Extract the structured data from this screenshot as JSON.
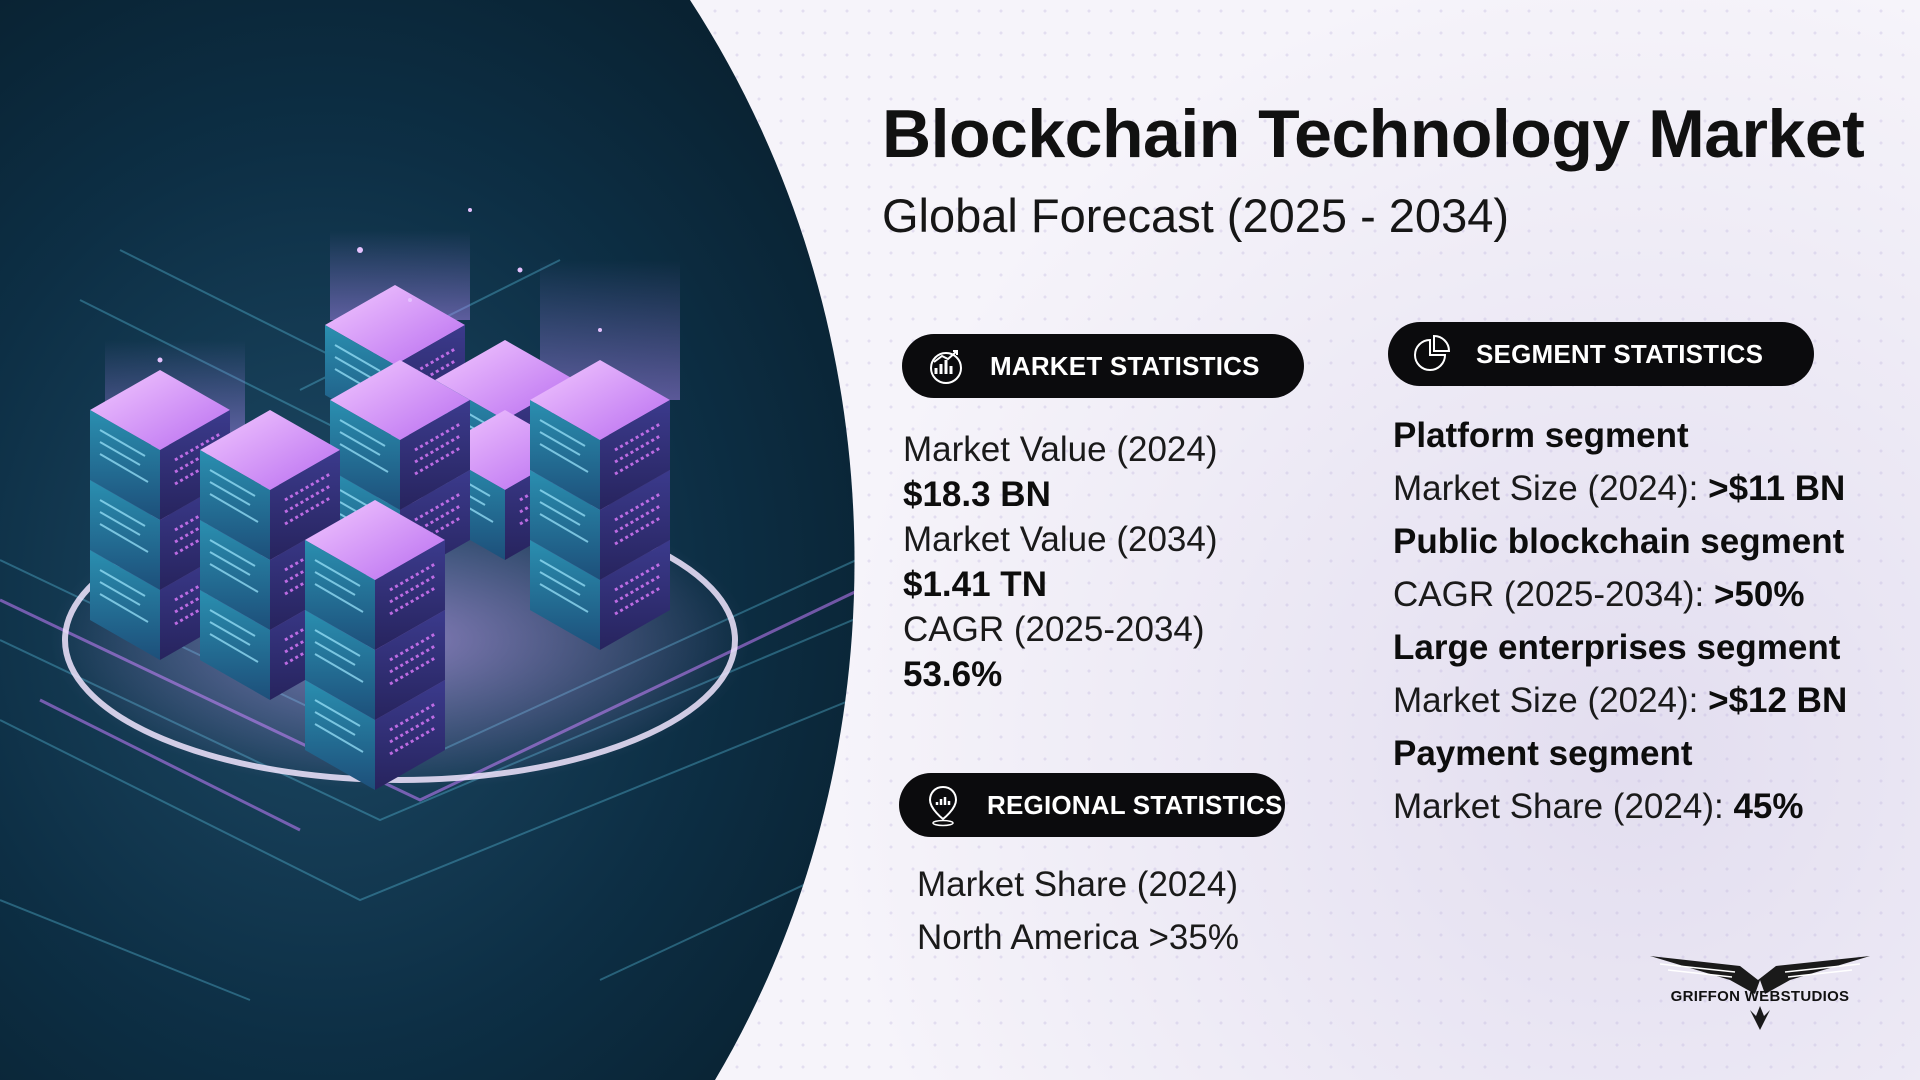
{
  "header": {
    "title": "Blockchain Technology Market",
    "subtitle": "Global Forecast (2025 - 2034)"
  },
  "market_statistics": {
    "heading": "MARKET STATISTICS",
    "icon": "chart-globe-icon",
    "lines": [
      {
        "text": "Market Value (2024)",
        "style": "regular"
      },
      {
        "text": "$18.3 BN",
        "style": "bold"
      },
      {
        "text": "Market Value (2034)",
        "style": "regular"
      },
      {
        "text": "$1.41 TN",
        "style": "bold"
      },
      {
        "text": "CAGR (2025-2034)",
        "style": "regular"
      },
      {
        "text": "53.6%",
        "style": "bold"
      }
    ]
  },
  "regional_statistics": {
    "heading": "REGIONAL STATISTICS",
    "icon": "location-pin-icon",
    "lines": [
      {
        "text": "Market Share (2024)"
      },
      {
        "text": "North America >35%"
      }
    ]
  },
  "segment_statistics": {
    "heading": "SEGMENT STATISTICS",
    "icon": "pie-chart-icon",
    "segments": [
      {
        "title": "Platform segment",
        "metric": "Market Size (2024): ",
        "value": ">$11 BN"
      },
      {
        "title": "Public blockchain segment",
        "metric": "CAGR (2025-2034): ",
        "value": ">50%"
      },
      {
        "title": "Large enterprises segment",
        "metric": "Market Size (2024): ",
        "value": ">$12 BN"
      },
      {
        "title": "Payment segment",
        "metric": "Market Share (2024): ",
        "value": "45%"
      }
    ]
  },
  "branding": {
    "logo_text": "GRIFFON WEBSTUDIOS",
    "logo_icon": "griffon-eagle-icon"
  },
  "colors": {
    "pill_bg": "#0b0b0d",
    "hero_dark": "#0a2a3d",
    "neon_purple": "#c77dff",
    "neon_cyan": "#39d0f0"
  }
}
